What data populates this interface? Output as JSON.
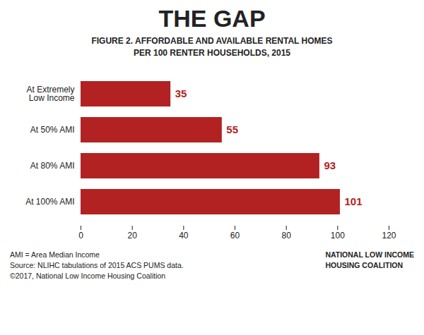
{
  "chart_data": {
    "type": "bar",
    "orientation": "horizontal",
    "title": "THE GAP",
    "subtitle": "FIGURE 2. AFFORDABLE AND AVAILABLE RENTAL HOMES\nPER 100 RENTER HOUSEHOLDS, 2015",
    "categories": [
      "At 100% AMI",
      "At 80% AMI",
      "At 50% AMI",
      "At Extremely\nLow Income"
    ],
    "values": [
      101,
      93,
      55,
      35
    ],
    "color": "#b22222",
    "xlim": [
      0,
      120
    ],
    "xticks": [
      0,
      20,
      40,
      60,
      80,
      100,
      120
    ],
    "grid": false,
    "data_labels": true,
    "annotations": [
      "AMI = Area Median Income",
      "Source: NLIHC tabulations of 2015 ACS PUMS data.",
      "©2017, National Low Income Housing Coalition",
      "NATIONAL LOW INCOME",
      "HOUSING COALITION"
    ]
  }
}
